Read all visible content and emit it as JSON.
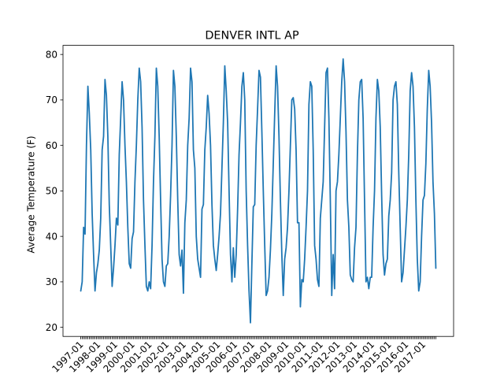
{
  "chart_data": {
    "type": "line",
    "title": "DENVER INTL AP",
    "xlabel": "",
    "ylabel": "Average Temperature (F)",
    "ylim": [
      18,
      82
    ],
    "y_ticks": [
      20,
      30,
      40,
      50,
      60,
      70,
      80
    ],
    "x_tick_labels": [
      "1997-01",
      "1998-01",
      "1999-01",
      "2000-01",
      "2001-01",
      "2002-01",
      "2003-01",
      "2004-01",
      "2005-01",
      "2006-01",
      "2007-01",
      "2008-01",
      "2009-01",
      "2010-01",
      "2011-01",
      "2012-01",
      "2013-01",
      "2014-01",
      "2015-01",
      "2016-01",
      "2017-01"
    ],
    "grid": false,
    "legend": "none",
    "series": [
      {
        "color": "#1f77b4",
        "x_start": "1997-01",
        "x_end": "2017-06",
        "frequency": "monthly",
        "values": [
          28,
          30,
          42,
          40.5,
          60,
          73,
          67,
          59,
          45,
          36,
          28,
          32,
          34,
          37,
          44,
          59,
          62,
          74.5,
          71,
          62,
          47,
          38,
          29,
          33,
          38,
          44,
          42.5,
          58,
          66,
          74,
          70,
          60,
          52,
          42,
          34,
          33,
          39.5,
          41,
          52,
          60,
          70,
          77,
          74,
          64,
          48,
          38,
          29,
          28,
          30,
          28.5,
          38,
          52,
          62,
          77,
          73,
          62,
          48,
          35,
          30,
          29,
          33.5,
          34,
          40,
          49,
          60,
          76.5,
          73,
          62,
          48,
          36,
          33.5,
          37,
          27.5,
          43,
          48,
          60,
          66,
          77,
          74,
          59,
          55,
          40,
          35,
          33,
          31,
          46,
          47,
          59,
          64,
          71,
          67,
          60,
          47,
          38,
          35,
          32.5,
          36,
          40,
          45,
          55,
          65,
          77.5,
          72,
          65,
          50,
          36,
          30,
          37.5,
          31,
          36,
          46,
          58,
          65,
          73,
          76,
          70,
          50,
          38,
          28,
          21,
          34,
          46.5,
          47,
          60,
          68,
          76.5,
          75,
          63,
          50,
          38,
          27,
          28,
          31,
          37,
          45,
          56,
          67,
          77.5,
          73,
          62,
          48,
          36,
          27,
          35,
          37.5,
          42,
          50,
          60,
          70,
          70.5,
          68,
          59,
          43,
          43,
          24.5,
          30.5,
          30,
          35,
          42,
          50,
          69,
          74,
          73,
          59,
          38,
          35,
          30.5,
          29,
          44,
          48,
          52,
          64,
          76,
          77,
          66,
          48,
          27,
          36,
          28.5,
          50,
          52,
          58,
          66,
          74,
          79,
          74,
          63,
          48,
          42,
          31.5,
          30.5,
          30,
          37.5,
          42,
          58,
          70,
          74,
          74.5,
          66,
          48,
          30,
          31,
          28.5,
          31,
          31,
          42,
          50,
          66,
          74.5,
          72,
          64,
          49,
          36,
          31.5,
          34,
          35,
          44.5,
          48,
          54,
          70,
          73,
          74,
          69,
          54,
          42,
          30,
          32,
          37,
          42,
          48,
          58,
          72,
          76,
          73,
          64,
          48,
          35,
          28,
          30,
          40,
          48,
          49,
          56,
          68,
          76.5,
          73,
          65,
          52,
          45,
          33
        ]
      }
    ]
  }
}
